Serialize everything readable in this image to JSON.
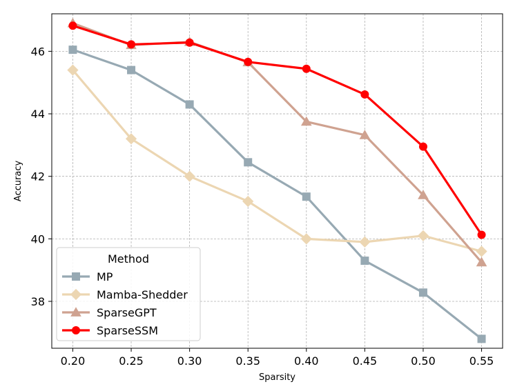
{
  "chart_data": {
    "type": "line",
    "xlabel": "Sparsity",
    "ylabel": "Accuracy",
    "x": [
      0.2,
      0.25,
      0.3,
      0.35,
      0.4,
      0.45,
      0.5,
      0.55
    ],
    "x_tick_labels": [
      "0.20",
      "0.25",
      "0.30",
      "0.35",
      "0.40",
      "0.45",
      "0.50",
      "0.55"
    ],
    "xlim": [
      0.182,
      0.568
    ],
    "ylim": [
      36.5,
      47.2
    ],
    "y_ticks": [
      38,
      40,
      42,
      44,
      46
    ],
    "y_tick_labels": [
      "38",
      "40",
      "42",
      "44",
      "46"
    ],
    "grid": true,
    "legend": {
      "title": "Method",
      "placement": "lower-left"
    },
    "series": [
      {
        "name": "MP",
        "color": "#97a9b3",
        "marker": "square",
        "values": [
          46.05,
          45.4,
          44.3,
          42.45,
          41.35,
          39.3,
          38.28,
          36.8
        ]
      },
      {
        "name": "Mamba-Shedder",
        "color": "#ecd6b2",
        "marker": "diamond",
        "values": [
          45.4,
          43.2,
          42.0,
          41.2,
          40.0,
          39.9,
          40.1,
          39.6
        ]
      },
      {
        "name": "SparseGPT",
        "color": "#cfa290",
        "marker": "triangle",
        "values": [
          46.9,
          46.2,
          46.3,
          45.65,
          43.75,
          43.32,
          41.4,
          39.25
        ]
      },
      {
        "name": "SparseSSM",
        "color": "#ff0000",
        "marker": "circle",
        "values": [
          46.82,
          46.22,
          46.28,
          45.66,
          45.44,
          44.62,
          42.95,
          40.13
        ]
      }
    ]
  }
}
